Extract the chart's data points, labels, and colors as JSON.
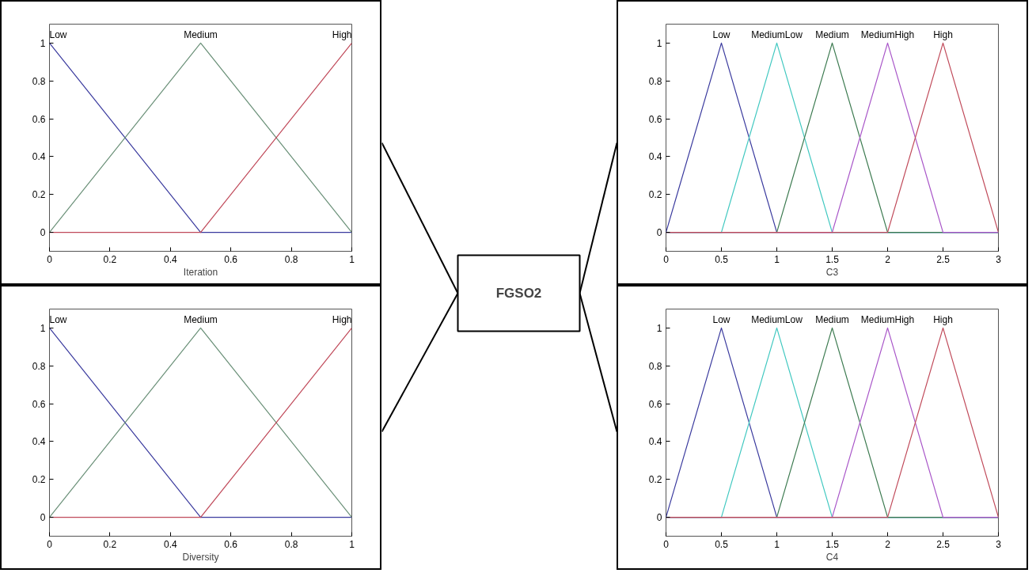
{
  "chart_data": [
    {
      "type": "line",
      "xlabel": "Iteration",
      "xlim": [
        0,
        1
      ],
      "ylim": [
        -0.1,
        1.1
      ],
      "xticks": [
        0,
        0.2,
        0.4,
        0.6,
        0.8,
        1
      ],
      "yticks": [
        0,
        0.2,
        0.4,
        0.6,
        0.8,
        1
      ],
      "grid": false,
      "legend": false,
      "series": [
        {
          "name": "Low",
          "color": "#3a3a9e",
          "x": [
            0,
            0.5,
            1
          ],
          "values": [
            1,
            0,
            0
          ]
        },
        {
          "name": "Medium",
          "color": "#6a9078",
          "x": [
            0,
            0.5,
            1
          ],
          "values": [
            0,
            1,
            0
          ]
        },
        {
          "name": "High",
          "color": "#c04a5a",
          "x": [
            0,
            0.5,
            1
          ],
          "values": [
            0,
            0,
            1
          ]
        }
      ]
    },
    {
      "type": "other",
      "title": "FGSO2"
    },
    {
      "type": "line",
      "xlabel": "C3",
      "xlim": [
        0,
        3
      ],
      "ylim": [
        -0.1,
        1.1
      ],
      "xticks": [
        0,
        0.5,
        1,
        1.5,
        2,
        2.5,
        3
      ],
      "yticks": [
        0,
        0.2,
        0.4,
        0.6,
        0.8,
        1
      ],
      "grid": false,
      "legend": false,
      "series": [
        {
          "name": "Low",
          "color": "#3a3a9e",
          "x": [
            0,
            0.5,
            1,
            3
          ],
          "values": [
            0,
            1,
            0,
            0
          ]
        },
        {
          "name": "MediumLow",
          "color": "#40c8c0",
          "x": [
            0,
            0.5,
            1,
            1.5,
            3
          ],
          "values": [
            0,
            0,
            1,
            0,
            0
          ]
        },
        {
          "name": "Medium",
          "color": "#3c7a50",
          "x": [
            0,
            1,
            1.5,
            2,
            3
          ],
          "values": [
            0,
            0,
            1,
            0,
            0
          ]
        },
        {
          "name": "MediumHigh",
          "color": "#a855c8",
          "x": [
            0,
            1.5,
            2,
            2.5,
            3
          ],
          "values": [
            0,
            0,
            1,
            0,
            0
          ]
        },
        {
          "name": "High",
          "color": "#c04a5a",
          "x": [
            0,
            2,
            2.5,
            3
          ],
          "values": [
            0,
            0,
            1,
            0
          ]
        }
      ]
    },
    {
      "type": "line",
      "xlabel": "Diversity",
      "xlim": [
        0,
        1
      ],
      "ylim": [
        -0.1,
        1.1
      ],
      "xticks": [
        0,
        0.2,
        0.4,
        0.6,
        0.8,
        1
      ],
      "yticks": [
        0,
        0.2,
        0.4,
        0.6,
        0.8,
        1
      ],
      "grid": false,
      "legend": false,
      "series": [
        {
          "name": "Low",
          "color": "#3a3a9e",
          "x": [
            0,
            0.5,
            1
          ],
          "values": [
            1,
            0,
            0
          ]
        },
        {
          "name": "Medium",
          "color": "#6a9078",
          "x": [
            0,
            0.5,
            1
          ],
          "values": [
            0,
            1,
            0
          ]
        },
        {
          "name": "High",
          "color": "#c04a5a",
          "x": [
            0,
            0.5,
            1
          ],
          "values": [
            0,
            0,
            1
          ]
        }
      ]
    },
    {
      "type": "line",
      "xlabel": "C4",
      "xlim": [
        0,
        3
      ],
      "ylim": [
        -0.1,
        1.1
      ],
      "xticks": [
        0,
        0.5,
        1,
        1.5,
        2,
        2.5,
        3
      ],
      "yticks": [
        0,
        0.2,
        0.4,
        0.6,
        0.8,
        1
      ],
      "grid": false,
      "legend": false,
      "series": [
        {
          "name": "Low",
          "color": "#3a3a9e",
          "x": [
            0,
            0.5,
            1,
            3
          ],
          "values": [
            0,
            1,
            0,
            0
          ]
        },
        {
          "name": "MediumLow",
          "color": "#40c8c0",
          "x": [
            0,
            0.5,
            1,
            1.5,
            3
          ],
          "values": [
            0,
            0,
            1,
            0,
            0
          ]
        },
        {
          "name": "Medium",
          "color": "#3c7a50",
          "x": [
            0,
            1,
            1.5,
            2,
            3
          ],
          "values": [
            0,
            0,
            1,
            0,
            0
          ]
        },
        {
          "name": "MediumHigh",
          "color": "#a855c8",
          "x": [
            0,
            1.5,
            2,
            2.5,
            3
          ],
          "values": [
            0,
            0,
            1,
            0,
            0
          ]
        },
        {
          "name": "High",
          "color": "#c04a5a",
          "x": [
            0,
            2,
            2.5,
            3
          ],
          "values": [
            0,
            0,
            1,
            0
          ]
        }
      ]
    }
  ]
}
